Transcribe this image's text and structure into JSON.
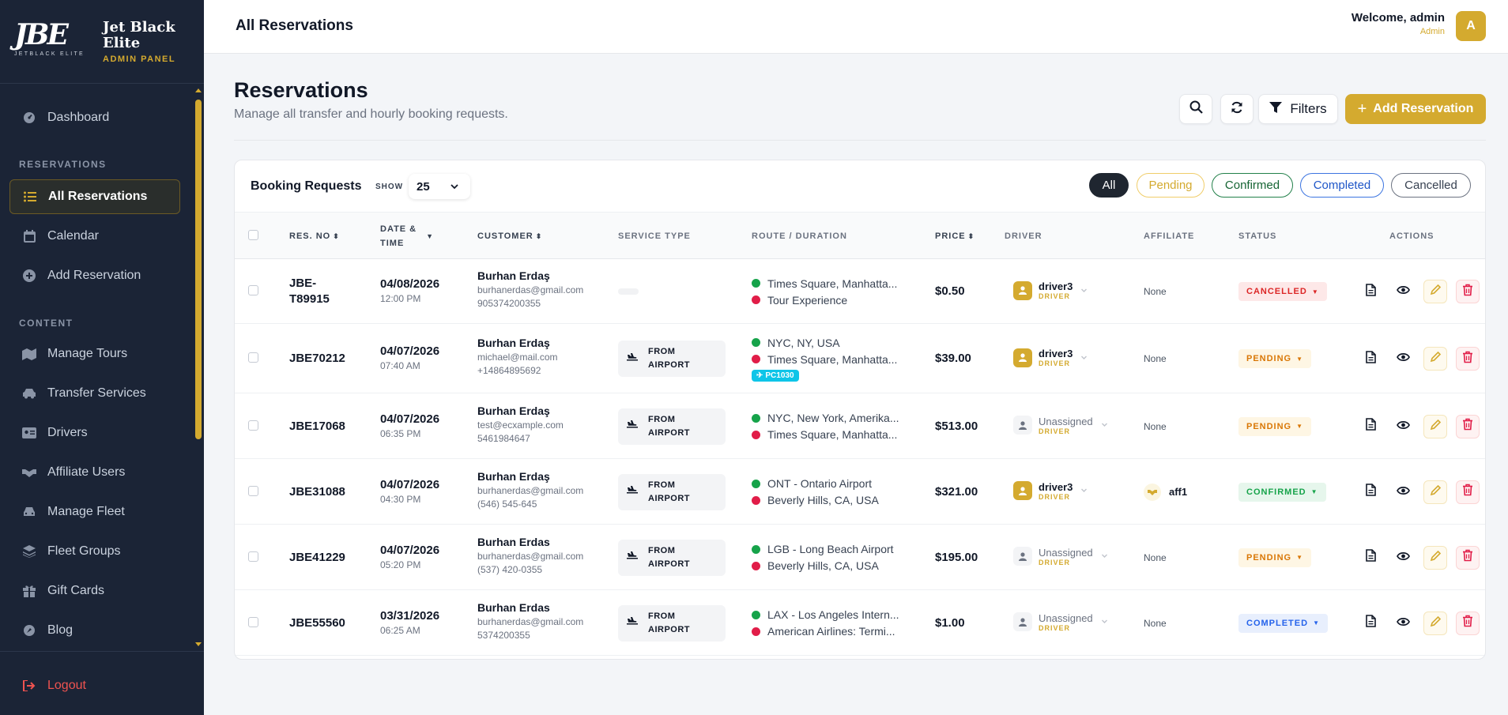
{
  "brand": {
    "mark": "JBE",
    "mark_sub": "JETBLACK ELITE",
    "name_line1": "Jet Black",
    "name_line2": "Elite",
    "panel": "ADMIN PANEL"
  },
  "sidebar": {
    "dashboard": "Dashboard",
    "section_reservations": "RESERVATIONS",
    "all_reservations": "All Reservations",
    "calendar": "Calendar",
    "add_reservation": "Add Reservation",
    "section_content": "CONTENT",
    "manage_tours": "Manage Tours",
    "transfer_services": "Transfer Services",
    "drivers": "Drivers",
    "affiliate_users": "Affiliate Users",
    "manage_fleet": "Manage Fleet",
    "fleet_groups": "Fleet Groups",
    "gift_cards": "Gift Cards",
    "blog": "Blog",
    "logout": "Logout"
  },
  "topbar": {
    "title": "All Reservations",
    "welcome": "Welcome, admin",
    "role": "Admin",
    "avatar": "A"
  },
  "header": {
    "title": "Reservations",
    "subtitle": "Manage all transfer and hourly booking requests.",
    "filters_label": "Filters",
    "add_label": "Add Reservation"
  },
  "card": {
    "title": "Booking Requests",
    "show_label": "SHOW",
    "show_value": "25",
    "filters": {
      "all": "All",
      "pending": "Pending",
      "confirmed": "Confirmed",
      "completed": "Completed",
      "cancelled": "Cancelled"
    }
  },
  "columns": {
    "res_no": "RES. NO",
    "date_line1": "DATE &",
    "date_line2": "TIME",
    "customer": "CUSTOMER",
    "service": "SERVICE TYPE",
    "route": "ROUTE / DURATION",
    "price": "PRICE",
    "driver": "DRIVER",
    "affiliate": "AFFILIATE",
    "status": "STATUS",
    "actions": "ACTIONS"
  },
  "rows": [
    {
      "res_line1": "JBE-",
      "res_line2": "T89915",
      "date": "04/08/2026",
      "time": "12:00 PM",
      "name": "Burhan Erdaş",
      "email": "burhanerdas@gmail.com",
      "phone": "905374200355",
      "service_line1": "",
      "service_line2": "",
      "from": "Times Square, Manhatta...",
      "to": "Tour Experience",
      "flight": "",
      "price": "$0.50",
      "driver": "driver3",
      "driver_role": "DRIVER",
      "affiliate": "None",
      "status": "CANCELLED",
      "status_key": "cancelled"
    },
    {
      "res_line1": "JBE70212",
      "res_line2": "",
      "date": "04/07/2026",
      "time": "07:40 AM",
      "name": "Burhan Erdaş",
      "email": "michael@mail.com",
      "phone": "+14864895692",
      "service_line1": "FROM",
      "service_line2": "AIRPORT",
      "from": "NYC, NY, USA",
      "to": "Times Square, Manhatta...",
      "flight": "PC1030",
      "price": "$39.00",
      "driver": "driver3",
      "driver_role": "DRIVER",
      "affiliate": "None",
      "status": "PENDING",
      "status_key": "pending"
    },
    {
      "res_line1": "JBE17068",
      "res_line2": "",
      "date": "04/07/2026",
      "time": "06:35 PM",
      "name": "Burhan Erdaş",
      "email": "test@ecxample.com",
      "phone": "5461984647",
      "service_line1": "FROM",
      "service_line2": "AIRPORT",
      "from": "NYC, New York, Amerika...",
      "to": "Times Square, Manhatta...",
      "flight": "",
      "price": "$513.00",
      "driver": "Unassigned",
      "driver_role": "DRIVER",
      "affiliate": "None",
      "status": "PENDING",
      "status_key": "pending"
    },
    {
      "res_line1": "JBE31088",
      "res_line2": "",
      "date": "04/07/2026",
      "time": "04:30 PM",
      "name": "Burhan Erdaş",
      "email": "burhanerdas@gmail.com",
      "phone": "(546) 545-645",
      "service_line1": "FROM",
      "service_line2": "AIRPORT",
      "from": "ONT - Ontario Airport",
      "to": "Beverly Hills, CA, USA",
      "flight": "",
      "price": "$321.00",
      "driver": "driver3",
      "driver_role": "DRIVER",
      "affiliate": "aff1",
      "status": "CONFIRMED",
      "status_key": "confirmed"
    },
    {
      "res_line1": "JBE41229",
      "res_line2": "",
      "date": "04/07/2026",
      "time": "05:20 PM",
      "name": "Burhan Erdas",
      "email": "burhanerdas@gmail.com",
      "phone": "(537) 420-0355",
      "service_line1": "FROM",
      "service_line2": "AIRPORT",
      "from": "LGB - Long Beach Airport",
      "to": "Beverly Hills, CA, USA",
      "flight": "",
      "price": "$195.00",
      "driver": "Unassigned",
      "driver_role": "DRIVER",
      "affiliate": "None",
      "status": "PENDING",
      "status_key": "pending"
    },
    {
      "res_line1": "JBE55560",
      "res_line2": "",
      "date": "03/31/2026",
      "time": "06:25 AM",
      "name": "Burhan Erdas",
      "email": "burhanerdas@gmail.com",
      "phone": "5374200355",
      "service_line1": "FROM",
      "service_line2": "AIRPORT",
      "from": "LAX - Los Angeles Intern...",
      "to": "American Airlines: Termi...",
      "flight": "",
      "price": "$1.00",
      "driver": "Unassigned",
      "driver_role": "DRIVER",
      "affiliate": "None",
      "status": "COMPLETED",
      "status_key": "completed"
    }
  ],
  "colors": {
    "accent": "#d4aa2f",
    "sidebar": "#1b2436",
    "cancelled": "#dc2626",
    "pending": "#d97706",
    "confirmed": "#16a34a",
    "completed": "#2563eb"
  }
}
